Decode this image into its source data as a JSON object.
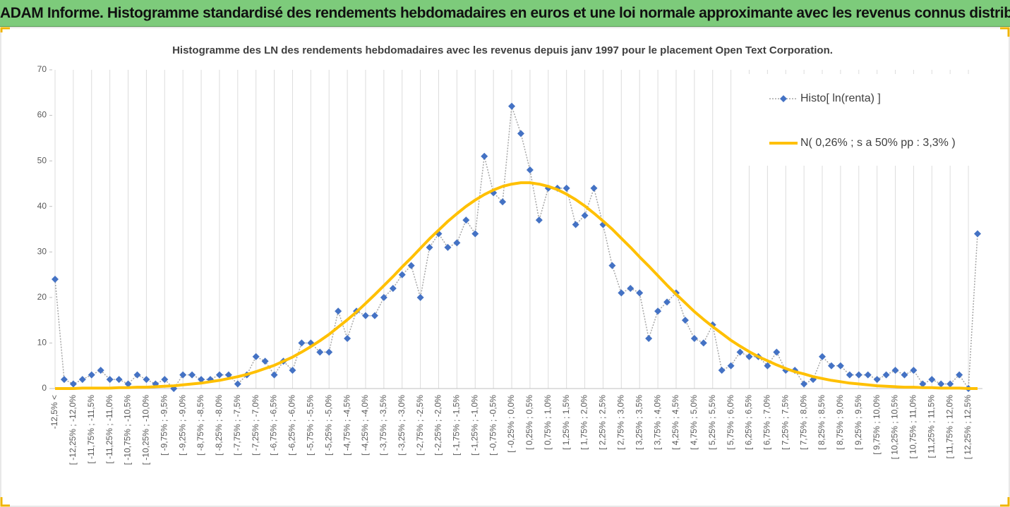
{
  "chart_data": {
    "type": "line",
    "title": "ADAM Informe. Histogramme standardisé des rendements hebdomadaires en euros et une loi normale approximante avec les revenus connus distribués",
    "subtitle": "Histogramme des LN des rendements hebdomadaires avec les revenus depuis janv 1997 pour le placement Open Text Corporation.",
    "categories": [
      "-12,5% <",
      null,
      "[ -12,25% ; -12,0%",
      null,
      "[ -11,75% ; -11,5%",
      null,
      "[ -11,25% ; -11,0%",
      null,
      "[ -10,75% ; -10,5%",
      null,
      "[ -10,25% ; -10,0%",
      null,
      "[ -9,75% ; -9,5%",
      null,
      "[ -9,25% ; -9,0%",
      null,
      "[ -8,75% ; -8,5%",
      null,
      "[ -8,25% ; -8,0%",
      null,
      "[ -7,75% ; -7,5%",
      null,
      "[ -7,25% ; -7,0%",
      null,
      "[ -6,75% ; -6,5%",
      null,
      "[ -6,25% ; -6,0%",
      null,
      "[ -5,75% ; -5,5%",
      null,
      "[ -5,25% ; -5,0%",
      null,
      "[ -4,75% ; -4,5%",
      null,
      "[ -4,25% ; -4,0%",
      null,
      "[ -3,75% ; -3,5%",
      null,
      "[ -3,25% ; -3,0%",
      null,
      "[ -2,75% ; -2,5%",
      null,
      "[ -2,25% ; -2,0%",
      null,
      "[ -1,75% ; -1,5%",
      null,
      "[ -1,25% ; -1,0%",
      null,
      "[ -0,75% ; -0,5%",
      null,
      "[ -0,25% ; 0,0%",
      null,
      "[ 0,25% ; 0,5%",
      null,
      "[ 0,75% ; 1,0%",
      null,
      "[ 1,25% ; 1,5%",
      null,
      "[ 1,75% ; 2,0%",
      null,
      "[ 2,25% ; 2,5%",
      null,
      "[ 2,75% ; 3,0%",
      null,
      "[ 3,25% ; 3,5%",
      null,
      "[ 3,75% ; 4,0%",
      null,
      "[ 4,25% ; 4,5%",
      null,
      "[ 4,75% ; 5,0%",
      null,
      "[ 5,25% ; 5,5%",
      null,
      "[ 5,75% ; 6,0%",
      null,
      "[ 6,25% ; 6,5%",
      null,
      "[ 6,75% ; 7,0%",
      null,
      "[ 7,25% ; 7,5%",
      null,
      "[ 7,75% ; 8,0%",
      null,
      "[ 8,25% ; 8,5%",
      null,
      "[ 8,75% ; 9,0%",
      null,
      "[ 9,25% ; 9,5%",
      null,
      "[ 9,75% ; 10,0%",
      null,
      "[ 10,25% ; 10,5%",
      null,
      "[ 10,75% ; 11,0%",
      null,
      "[ 11,25% ; 11,5%",
      null,
      "[ 11,75% ; 12,0%",
      null,
      "[ 12,25% ; 12,5%",
      null
    ],
    "series": [
      {
        "name": "Histo[ ln(renta) ]",
        "color": "#4472c4",
        "marker": "diamond",
        "line_style": "dotted",
        "values": [
          24,
          2,
          1,
          2,
          3,
          4,
          2,
          2,
          1,
          3,
          2,
          1,
          2,
          0,
          3,
          3,
          2,
          2,
          3,
          3,
          1,
          3,
          7,
          6,
          3,
          6,
          4,
          10,
          10,
          8,
          8,
          17,
          11,
          17,
          16,
          16,
          20,
          22,
          25,
          27,
          20,
          31,
          34,
          31,
          32,
          37,
          34,
          51,
          43,
          41,
          62,
          56,
          48,
          37,
          44,
          44,
          44,
          36,
          38,
          44,
          36,
          27,
          21,
          22,
          21,
          11,
          17,
          19,
          21,
          15,
          11,
          10,
          14,
          4,
          5,
          8,
          7,
          7,
          5,
          8,
          4,
          4,
          1,
          2,
          7,
          5,
          5,
          3,
          3,
          3,
          2,
          3,
          4,
          3,
          4,
          1,
          2,
          1,
          1,
          3,
          0,
          34
        ]
      },
      {
        "name": "N( 0,26% ; s a 50% pp : 3,3% )",
        "color": "#ffc000",
        "marker": "none",
        "line_style": "solid",
        "values": [
          0,
          0,
          0,
          0.1,
          0.1,
          0.1,
          0.1,
          0.2,
          0.2,
          0.3,
          0.3,
          0.4,
          0.5,
          0.6,
          0.8,
          1.0,
          1.2,
          1.5,
          1.8,
          2.2,
          2.6,
          3.1,
          3.7,
          4.4,
          5.1,
          6.0,
          6.9,
          8.0,
          9.2,
          10.5,
          11.9,
          13.5,
          15.1,
          16.8,
          18.7,
          20.6,
          22.6,
          24.6,
          26.7,
          28.7,
          30.8,
          32.9,
          34.8,
          36.7,
          38.4,
          40.0,
          41.4,
          42.6,
          43.6,
          44.4,
          44.9,
          45.2,
          45.2,
          44.9,
          44.4,
          43.7,
          42.7,
          41.5,
          40.1,
          38.5,
          36.8,
          35.0,
          33.0,
          31.0,
          28.9,
          26.9,
          24.8,
          22.7,
          20.7,
          18.8,
          16.9,
          15.2,
          13.6,
          12.1,
          10.6,
          9.3,
          8.1,
          7.0,
          6.1,
          5.2,
          4.4,
          3.7,
          3.2,
          2.6,
          2.2,
          1.8,
          1.5,
          1.2,
          1.0,
          0.8,
          0.6,
          0.5,
          0.4,
          0.3,
          0.3,
          0.2,
          0.2,
          0.1,
          0.1,
          0.1,
          0,
          0
        ]
      }
    ],
    "ylim": [
      0,
      70
    ],
    "yticks": [
      0,
      10,
      20,
      30,
      40,
      50,
      60,
      70
    ],
    "grid": "vertical",
    "legend": "top-right"
  }
}
